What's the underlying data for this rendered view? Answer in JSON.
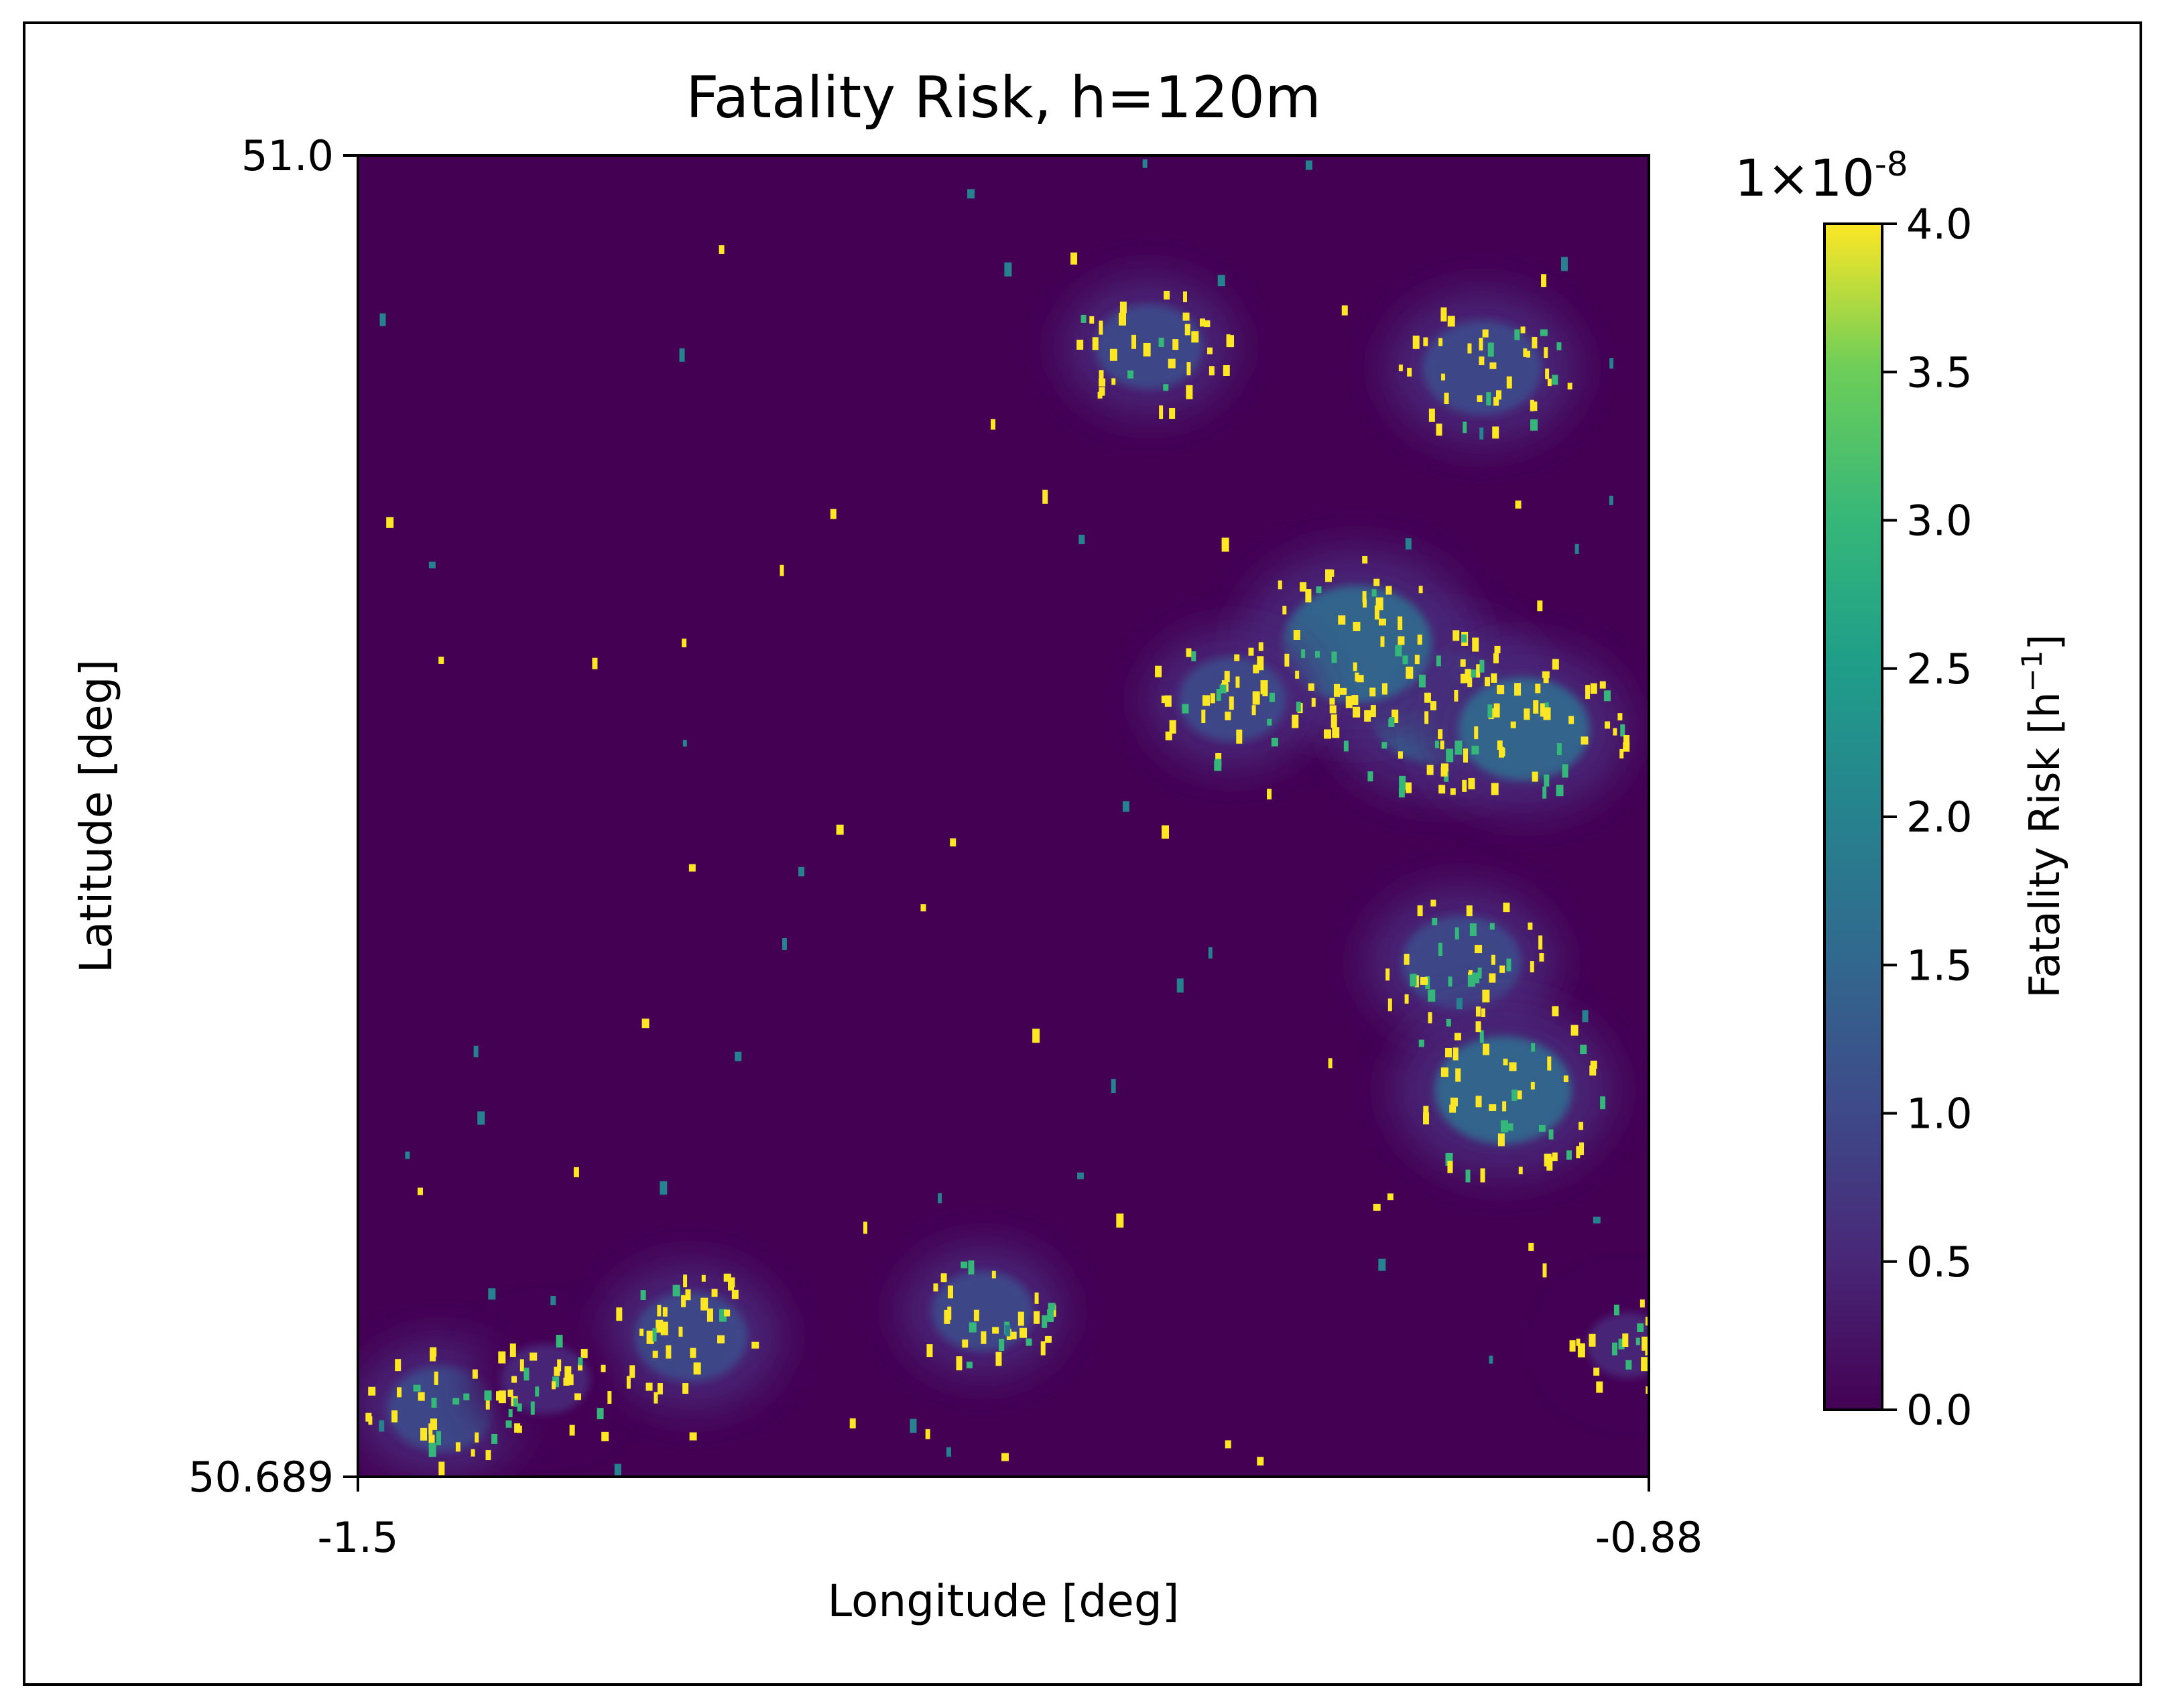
{
  "chart_data": {
    "type": "heatmap",
    "title": "Fatality Risk, h=120m",
    "xlabel": "Longitude [deg]",
    "ylabel": "Latitude [deg]",
    "x_ticks": [
      "-1.5",
      "-0.88"
    ],
    "y_ticks": [
      "51.0",
      "50.689"
    ],
    "xlim": [
      -1.5,
      -0.88
    ],
    "ylim": [
      50.689,
      51.0
    ],
    "colorbar": {
      "label": "Fatality Risk [h",
      "label_exponent": "−1",
      "label_close": "]",
      "offset_base": "1×10",
      "offset_exponent": "-8",
      "ticks": [
        "0.0",
        "0.5",
        "1.0",
        "1.5",
        "2.0",
        "2.5",
        "3.0",
        "3.5",
        "4.0"
      ],
      "range": [
        0.0,
        4.0
      ],
      "colormap": "viridis"
    },
    "colors": {
      "background": "#440154",
      "low": "#482878",
      "mid": "#31688e",
      "teal": "#26828e",
      "green": "#35b779",
      "yellow": "#fde725"
    },
    "hotspots": [
      {
        "lon": -0.98,
        "lat": 50.87,
        "level": 1.6
      },
      {
        "lon": -1.02,
        "lat": 50.885,
        "level": 1.7
      },
      {
        "lon": -0.94,
        "lat": 50.865,
        "level": 1.4
      },
      {
        "lon": -0.96,
        "lat": 50.95,
        "level": 1.2
      },
      {
        "lon": -1.12,
        "lat": 50.955,
        "level": 1.0
      },
      {
        "lon": -1.08,
        "lat": 50.872,
        "level": 1.0
      },
      {
        "lon": -0.97,
        "lat": 50.81,
        "level": 1.2
      },
      {
        "lon": -0.95,
        "lat": 50.78,
        "level": 1.5
      },
      {
        "lon": -1.46,
        "lat": 50.705,
        "level": 1.0
      },
      {
        "lon": -1.34,
        "lat": 50.722,
        "level": 1.1
      },
      {
        "lon": -1.2,
        "lat": 50.728,
        "level": 0.9
      },
      {
        "lon": -1.41,
        "lat": 50.712,
        "level": 0.7
      },
      {
        "lon": -0.89,
        "lat": 50.72,
        "level": 0.6
      }
    ]
  }
}
